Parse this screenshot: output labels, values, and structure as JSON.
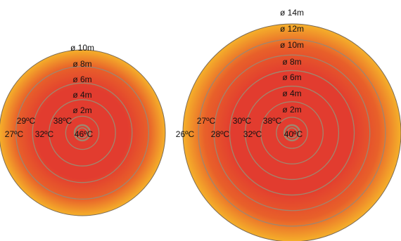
{
  "colors": {
    "center": "#e23c2f",
    "mid": "#e8602a",
    "edge": "#f5b02a",
    "ring": "#a0866e",
    "outline": "#7d6a55"
  },
  "diagrams": [
    {
      "id": "left",
      "outer_diameter_m": 10,
      "ring_labels": [
        "ø 10m",
        "ø 8m",
        "ø 6m",
        "ø 4m",
        "ø 2m"
      ],
      "ring_diameters_m": [
        8,
        6,
        4,
        2
      ],
      "temperature_labels": [
        "29ºC",
        "38ºC",
        "27ºC",
        "32ºC",
        "46ºC"
      ]
    },
    {
      "id": "right",
      "outer_diameter_m": 14,
      "ring_labels": [
        "ø 14m",
        "ø 12m",
        "ø 10m",
        "ø 8m",
        "ø 6m",
        "ø 4m",
        "ø 2m"
      ],
      "ring_diameters_m": [
        12,
        10,
        8,
        6,
        4,
        2
      ],
      "temperature_labels": [
        "27ºC",
        "30ºC",
        "38ºC",
        "26ºC",
        "28ºC",
        "32ºC",
        "40ºC"
      ]
    }
  ]
}
